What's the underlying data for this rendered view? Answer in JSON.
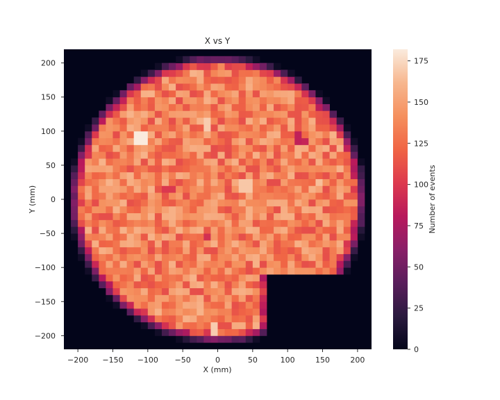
{
  "chart_data": {
    "type": "heatmap",
    "title": "X vs Y",
    "xlabel": "X (mm)",
    "ylabel": "Y (mm)",
    "xlim": [
      -220,
      220
    ],
    "ylim": [
      -220,
      220
    ],
    "bin_size_mm": 10,
    "x_ticks": [
      -200,
      -150,
      -100,
      -50,
      0,
      50,
      100,
      150,
      200
    ],
    "y_ticks": [
      -200,
      -150,
      -100,
      -50,
      0,
      50,
      100,
      150,
      200
    ],
    "x_tick_labels": [
      "−200",
      "−150",
      "−100",
      "−50",
      "0",
      "50",
      "100",
      "150",
      "200"
    ],
    "y_tick_labels": [
      "−200",
      "−150",
      "−100",
      "−50",
      "0",
      "50",
      "100",
      "150",
      "200"
    ],
    "colorbar": {
      "label": "Number of events",
      "range": [
        0,
        182
      ],
      "ticks": [
        0,
        25,
        50,
        75,
        100,
        125,
        150,
        175
      ],
      "colormap": "rocket",
      "colors": [
        "#03051a",
        "#2b1a3f",
        "#5a1e5c",
        "#8a1f68",
        "#b8195c",
        "#dd3a4e",
        "#f06545",
        "#f5905e",
        "#f7b78f",
        "#faebdd"
      ]
    },
    "distribution": {
      "shape": "disk with notch in lower-right quadrant",
      "disk_center_mm": [
        0,
        0
      ],
      "disk_radius_mm": 205,
      "notch": "x > 70 and y < -110 is empty",
      "typical_counts_inside": [
        110,
        160
      ],
      "edge_counts": [
        20,
        80
      ],
      "hot_bins": [
        [
          -110,
          90,
          182
        ],
        [
          -15,
          110,
          170
        ],
        [
          40,
          20,
          168
        ],
        [
          145,
          25,
          165
        ],
        [
          -5,
          -190,
          170
        ]
      ],
      "cold_bins": [
        [
          115,
          90,
          85
        ],
        [
          125,
          85,
          88
        ],
        [
          -15,
          -55,
          95
        ],
        [
          -70,
          15,
          100
        ]
      ]
    }
  },
  "page": {
    "title": "X vs Y",
    "xlabel": "X (mm)",
    "ylabel": "Y (mm)",
    "colorbar_label": "Number of events"
  }
}
